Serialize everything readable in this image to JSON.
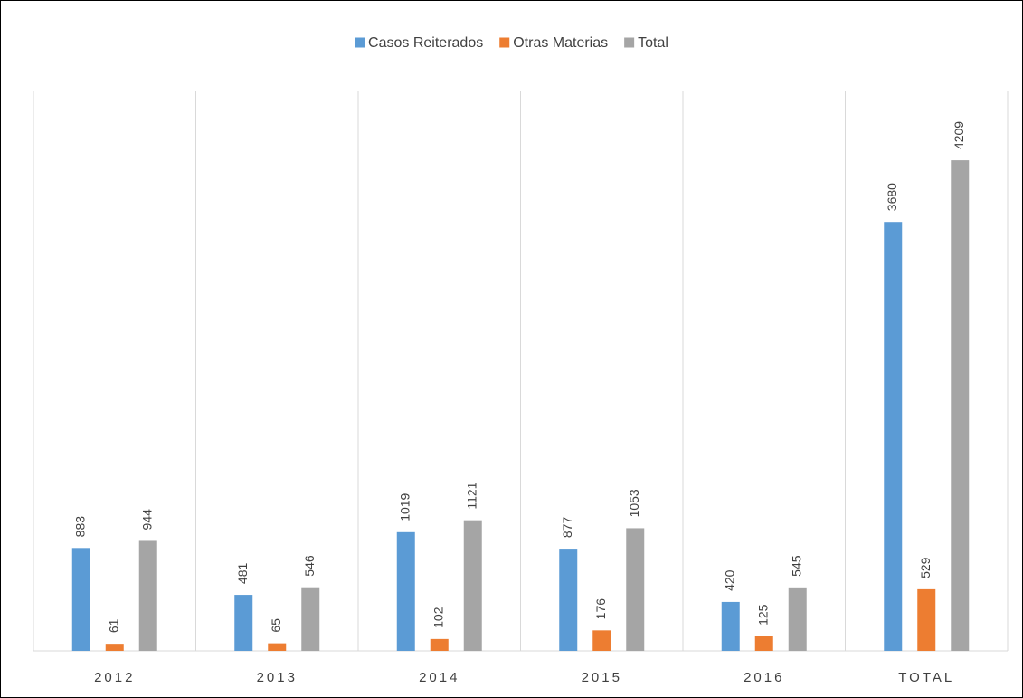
{
  "chart_data": {
    "type": "bar",
    "title": "",
    "xlabel": "",
    "ylabel": "",
    "categories": [
      "2012",
      "2013",
      "2014",
      "2015",
      "2016",
      "TOTAL"
    ],
    "series": [
      {
        "name": "Casos Reiterados",
        "color": "#5B9BD5",
        "values": [
          883,
          481,
          1019,
          877,
          420,
          3680
        ]
      },
      {
        "name": "Otras Materias",
        "color": "#ED7D31",
        "values": [
          61,
          65,
          102,
          176,
          125,
          529
        ]
      },
      {
        "name": "Total",
        "color": "#A5A5A5",
        "values": [
          944,
          546,
          1121,
          1053,
          545,
          4209
        ]
      }
    ],
    "ylim": [
      0,
      4800
    ],
    "grid": "vertical-category-separators",
    "legend_position": "top-center",
    "data_labels": "rotated-vertical"
  }
}
